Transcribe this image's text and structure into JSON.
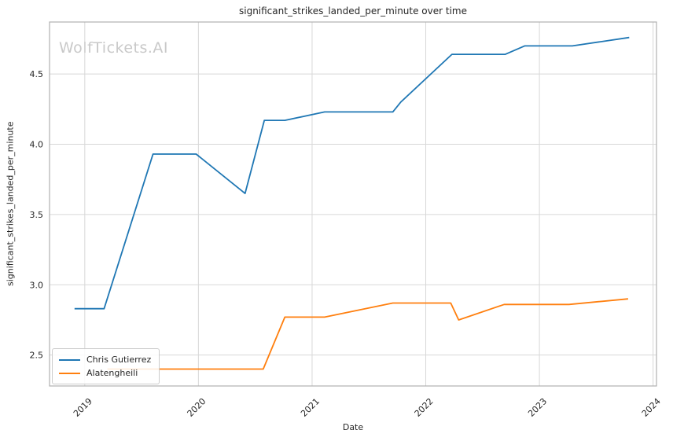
{
  "watermark": "WolfTickets.AI",
  "chart_data": {
    "type": "line",
    "title": "significant_strikes_landed_per_minute over time",
    "xlabel": "Date",
    "ylabel": "significant_strikes_landed_per_minute",
    "xlim": [
      2018.69,
      2024.03
    ],
    "ylim": [
      2.28,
      4.87
    ],
    "x_tick_labels": [
      "2019",
      "2020",
      "2021",
      "2022",
      "2023",
      "2024"
    ],
    "y_tick_labels": [
      "2.5",
      "3.0",
      "3.5",
      "4.0",
      "4.5"
    ],
    "grid": true,
    "legend_position": "lower left",
    "colors": {
      "grid": "#d8d8d8",
      "spine": "#b0b0b0",
      "text": "#262626"
    },
    "series": [
      {
        "name": "Chris Gutierrez",
        "color": "#1f77b4",
        "x": [
          2018.91,
          2019.17,
          2019.6,
          2019.98,
          2020.41,
          2020.58,
          2020.76,
          2021.11,
          2021.71,
          2021.78,
          2022.23,
          2022.7,
          2022.87,
          2023.29,
          2023.79
        ],
        "y": [
          2.83,
          2.83,
          3.93,
          3.93,
          3.65,
          4.17,
          4.17,
          4.23,
          4.23,
          4.3,
          4.64,
          4.64,
          4.7,
          4.7,
          4.76
        ]
      },
      {
        "name": "Alatengheili",
        "color": "#ff7f0e",
        "x": [
          2019.2,
          2020.57,
          2020.76,
          2021.11,
          2021.71,
          2022.22,
          2022.29,
          2022.69,
          2023.26,
          2023.78
        ],
        "y": [
          2.4,
          2.4,
          2.77,
          2.77,
          2.87,
          2.87,
          2.75,
          2.86,
          2.86,
          2.9
        ]
      }
    ]
  }
}
